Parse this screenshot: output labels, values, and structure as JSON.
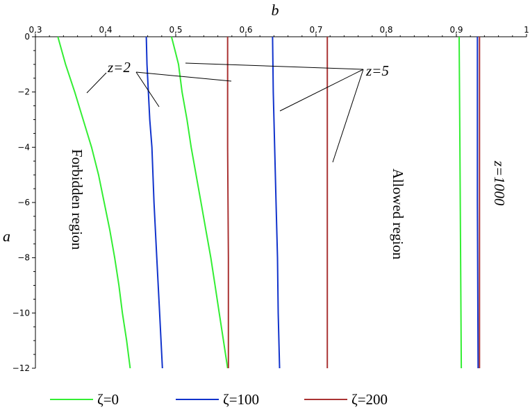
{
  "chart_data": {
    "type": "line",
    "xlabel": "b",
    "ylabel": "a",
    "xlim": [
      0.3,
      1.0
    ],
    "ylim": [
      -12,
      0
    ],
    "x_axis_position": "top",
    "x_ticks": [
      {
        "value": 0.3,
        "label": "0,3"
      },
      {
        "value": 0.4,
        "label": "0,4"
      },
      {
        "value": 0.5,
        "label": "0,5"
      },
      {
        "value": 0.6,
        "label": "0,6"
      },
      {
        "value": 0.7,
        "label": "0,7"
      },
      {
        "value": 0.8,
        "label": "0,8"
      },
      {
        "value": 0.9,
        "label": "0,9"
      },
      {
        "value": 1.0,
        "label": "1"
      }
    ],
    "y_ticks": [
      {
        "value": 0,
        "label": "0"
      },
      {
        "value": -2,
        "label": "−2"
      },
      {
        "value": -4,
        "label": "−4"
      },
      {
        "value": -6,
        "label": "−6"
      },
      {
        "value": -8,
        "label": "−8"
      },
      {
        "value": -10,
        "label": "−10"
      },
      {
        "value": -12,
        "label": "−12"
      }
    ],
    "grid": false,
    "legend_position": "bottom",
    "series": [
      {
        "name": "ζ=0",
        "color": "#33ee33",
        "curves": [
          {
            "z": "2",
            "points": [
              [
                0.332,
                0
              ],
              [
                0.343,
                -1
              ],
              [
                0.356,
                -2
              ],
              [
                0.368,
                -3
              ],
              [
                0.38,
                -4
              ],
              [
                0.39,
                -5
              ],
              [
                0.398,
                -6
              ],
              [
                0.406,
                -7
              ],
              [
                0.413,
                -8
              ],
              [
                0.419,
                -9
              ],
              [
                0.424,
                -10
              ],
              [
                0.43,
                -11
              ],
              [
                0.435,
                -12
              ]
            ]
          },
          {
            "z": "5",
            "points": [
              [
                0.494,
                0
              ],
              [
                0.5,
                -0.6
              ],
              [
                0.504,
                -1
              ],
              [
                0.509,
                -2
              ],
              [
                0.516,
                -3
              ],
              [
                0.522,
                -4
              ],
              [
                0.529,
                -5
              ],
              [
                0.536,
                -6
              ],
              [
                0.543,
                -7
              ],
              [
                0.55,
                -8
              ],
              [
                0.556,
                -9
              ],
              [
                0.562,
                -10
              ],
              [
                0.568,
                -11
              ],
              [
                0.574,
                -12
              ]
            ]
          },
          {
            "z": "1000",
            "points": [
              [
                0.904,
                0
              ],
              [
                0.905,
                -4
              ],
              [
                0.906,
                -8
              ],
              [
                0.907,
                -12
              ]
            ]
          }
        ]
      },
      {
        "name": "ζ=100",
        "color": "#1133cc",
        "curves": [
          {
            "z": "2",
            "points": [
              [
                0.458,
                0
              ],
              [
                0.459,
                -1
              ],
              [
                0.461,
                -2
              ],
              [
                0.463,
                -3
              ],
              [
                0.466,
                -4
              ],
              [
                0.469,
                -6
              ],
              [
                0.473,
                -8
              ],
              [
                0.477,
                -10
              ],
              [
                0.481,
                -12
              ]
            ]
          },
          {
            "z": "5",
            "points": [
              [
                0.638,
                0
              ],
              [
                0.639,
                -2
              ],
              [
                0.641,
                -4
              ],
              [
                0.643,
                -6
              ],
              [
                0.645,
                -8
              ],
              [
                0.646,
                -10
              ],
              [
                0.648,
                -12
              ]
            ]
          },
          {
            "z": "1000",
            "points": [
              [
                0.93,
                0
              ],
              [
                0.93,
                -6
              ],
              [
                0.931,
                -12
              ]
            ]
          }
        ]
      },
      {
        "name": "ζ=200",
        "color": "#aa3333",
        "curves": [
          {
            "z": "2",
            "points": [
              [
                0.574,
                0
              ],
              [
                0.574,
                -4
              ],
              [
                0.575,
                -8
              ],
              [
                0.575,
                -12
              ]
            ]
          },
          {
            "z": "5",
            "points": [
              [
                0.716,
                0
              ],
              [
                0.716,
                -6
              ],
              [
                0.716,
                -12
              ]
            ]
          },
          {
            "z": "1000",
            "points": [
              [
                0.933,
                0
              ],
              [
                0.933,
                -6
              ],
              [
                0.933,
                -12
              ]
            ]
          }
        ]
      }
    ],
    "annotations": [
      {
        "text": "z=2",
        "value_label": "2"
      },
      {
        "text": "z=5",
        "value_label": "5"
      },
      {
        "text": "z=1000",
        "value_label": "1000"
      },
      {
        "text": "Forbidden region"
      },
      {
        "text": "Allowed region"
      }
    ]
  },
  "labels": {
    "z2": "z=2",
    "z5": "z=5",
    "z1000": "z=1000",
    "forbidden": "Forbidden region",
    "allowed": "Allowed region"
  }
}
